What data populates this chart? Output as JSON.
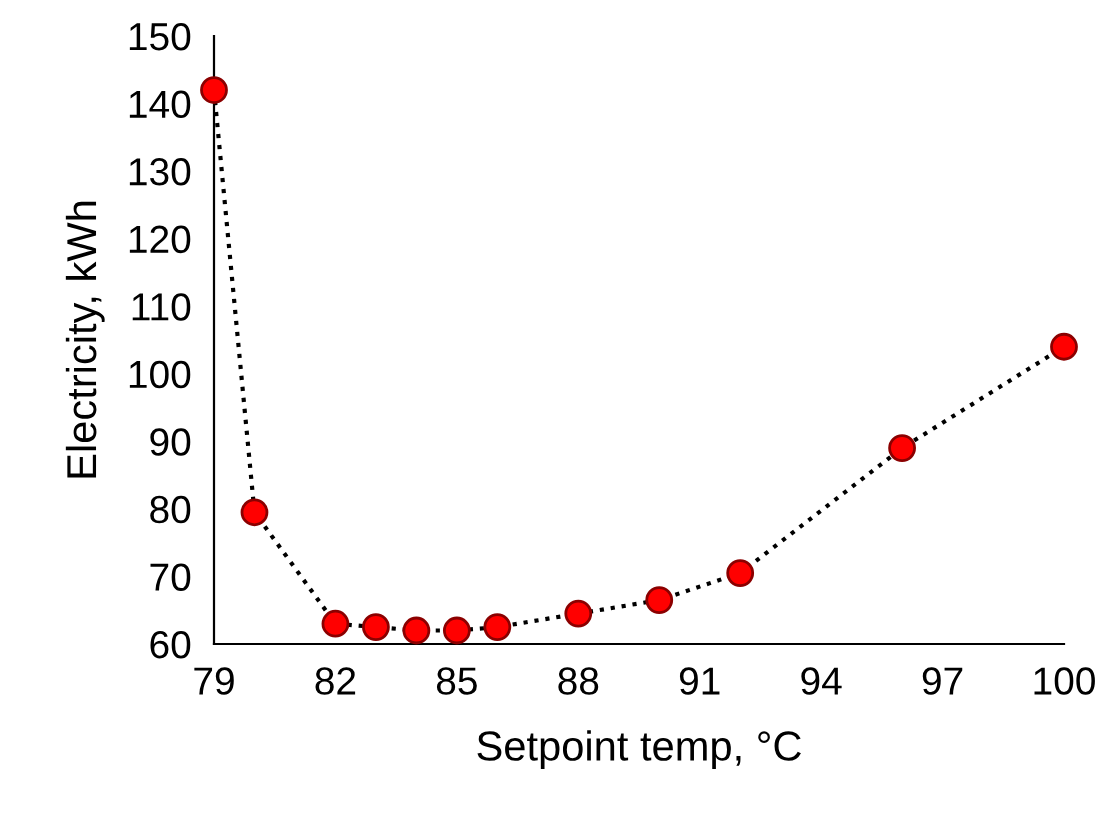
{
  "chart_data": {
    "type": "line",
    "xlabel": "Setpoint temp, °C",
    "ylabel": "Electricity, kWh",
    "x": [
      79,
      80,
      82,
      83,
      84,
      85,
      86,
      88,
      90,
      92,
      96,
      100
    ],
    "series": [
      {
        "color": "#ff0000",
        "values": [
          142,
          79.5,
          63,
          62.5,
          62,
          62,
          62.5,
          64.5,
          66.5,
          70.5,
          89,
          104
        ]
      }
    ],
    "xlim": [
      79,
      100
    ],
    "xticks": [
      79,
      82,
      85,
      88,
      91,
      94,
      97,
      100
    ],
    "ylim": [
      60,
      150
    ],
    "yticks": [
      60,
      70,
      80,
      90,
      100,
      110,
      120,
      130,
      140,
      150
    ],
    "grid": false,
    "legend": false,
    "marker": "circle",
    "line_style": "dotted"
  }
}
